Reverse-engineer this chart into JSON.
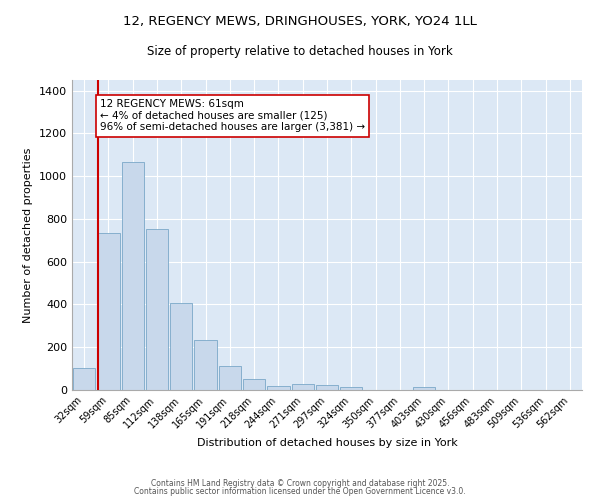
{
  "title1": "12, REGENCY MEWS, DRINGHOUSES, YORK, YO24 1LL",
  "title2": "Size of property relative to detached houses in York",
  "xlabel": "Distribution of detached houses by size in York",
  "ylabel": "Number of detached properties",
  "categories": [
    "32sqm",
    "59sqm",
    "85sqm",
    "112sqm",
    "138sqm",
    "165sqm",
    "191sqm",
    "218sqm",
    "244sqm",
    "271sqm",
    "297sqm",
    "324sqm",
    "350sqm",
    "377sqm",
    "403sqm",
    "430sqm",
    "456sqm",
    "483sqm",
    "509sqm",
    "536sqm",
    "562sqm"
  ],
  "values": [
    105,
    735,
    1065,
    755,
    405,
    235,
    110,
    50,
    20,
    28,
    22,
    15,
    0,
    0,
    12,
    0,
    0,
    0,
    0,
    0,
    0
  ],
  "bar_color": "#c8d8eb",
  "bar_edge_color": "#7aa8c8",
  "background_color": "#dce8f5",
  "grid_color": "#ffffff",
  "vline_color": "#cc0000",
  "annotation_text": "12 REGENCY MEWS: 61sqm\n← 4% of detached houses are smaller (125)\n96% of semi-detached houses are larger (3,381) →",
  "annotation_box_color": "#ffffff",
  "annotation_box_edge": "#cc0000",
  "ylim": [
    0,
    1450
  ],
  "yticks": [
    0,
    200,
    400,
    600,
    800,
    1000,
    1200,
    1400
  ],
  "footer1": "Contains HM Land Registry data © Crown copyright and database right 2025.",
  "footer2": "Contains public sector information licensed under the Open Government Licence v3.0."
}
